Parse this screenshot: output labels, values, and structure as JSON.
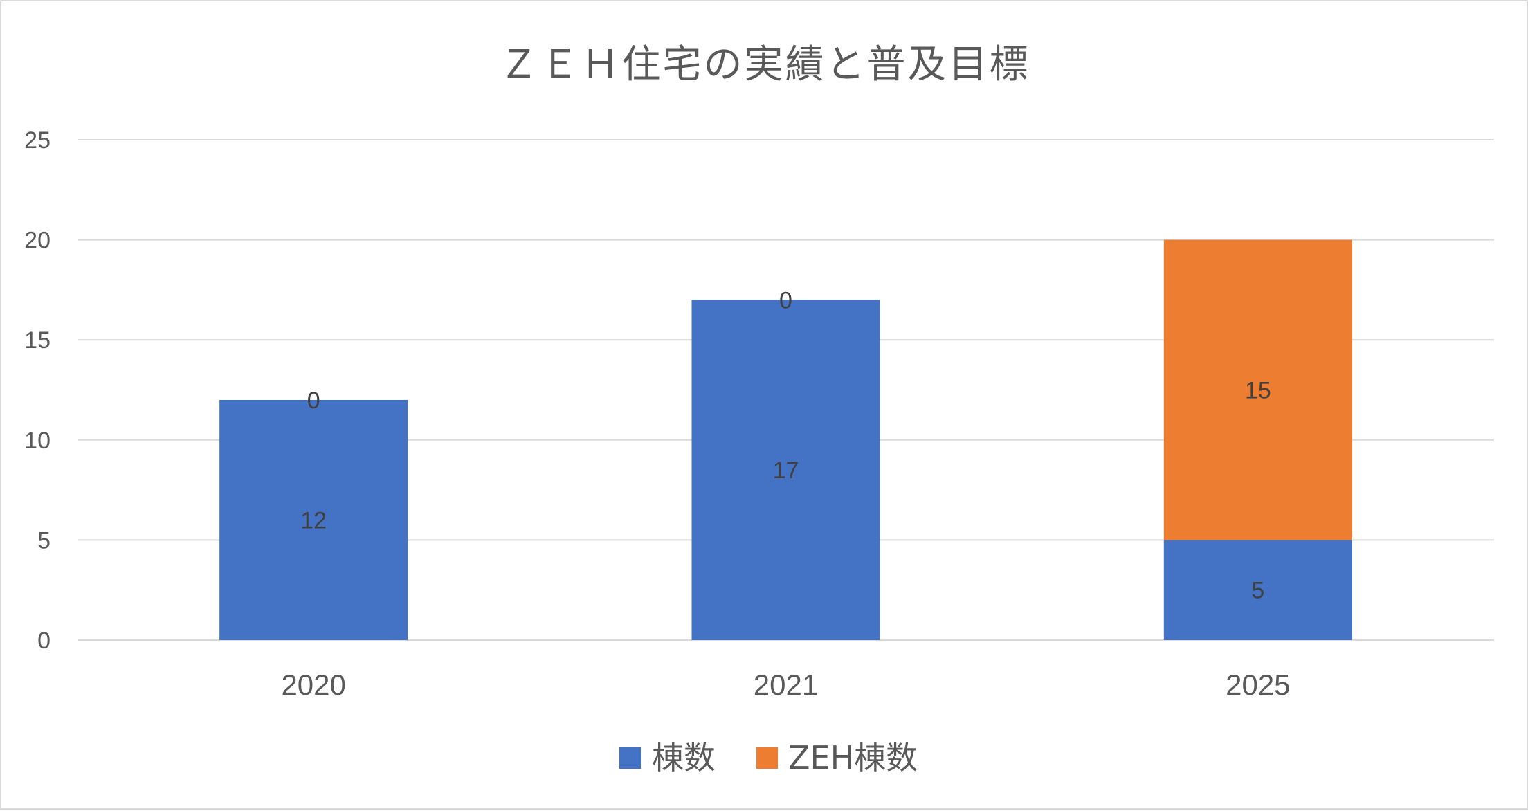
{
  "chart_data": {
    "type": "bar",
    "stacked": true,
    "title": "ＺＥＨ住宅の実績と普及目標",
    "xlabel": "",
    "ylabel": "",
    "categories": [
      "2020",
      "2021",
      "2025"
    ],
    "series": [
      {
        "name": "棟数",
        "values": [
          12,
          17,
          5
        ],
        "color": "#4472c4"
      },
      {
        "name": "ZEH棟数",
        "values": [
          0,
          0,
          15
        ],
        "color": "#ed7d31"
      }
    ],
    "ylim": [
      0,
      25
    ],
    "yticks": [
      0,
      5,
      10,
      15,
      20,
      25
    ],
    "grid": true,
    "legend_position": "bottom",
    "gridline_color": "#d9d9d9",
    "data_labels": true
  }
}
